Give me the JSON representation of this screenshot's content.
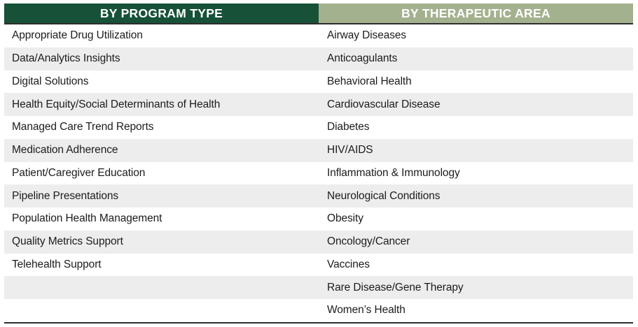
{
  "table": {
    "columns": [
      {
        "header": "BY PROGRAM TYPE",
        "items": [
          "Appropriate Drug Utilization",
          "Data/Analytics Insights",
          "Digital Solutions",
          "Health Equity/Social Determinants of Health",
          "Managed Care Trend Reports",
          "Medication Adherence",
          "Patient/Caregiver Education",
          "Pipeline Presentations",
          "Population Health Management",
          "Quality Metrics Support",
          "Telehealth Support"
        ]
      },
      {
        "header": "BY THERAPEUTIC AREA",
        "items": [
          "Airway Diseases",
          "Anticoagulants",
          "Behavioral Health",
          "Cardiovascular Disease",
          "Diabetes",
          "HIV/AIDS",
          "Inflammation & Immunology",
          "Neurological Conditions",
          "Obesity",
          "Oncology/Cancer",
          "Vaccines",
          "Rare Disease/Gene Therapy",
          "Women’s Health"
        ]
      }
    ]
  },
  "colors": {
    "header_program_bg": "#165138",
    "header_area_bg": "#a4b18f",
    "row_stripe": "#ededed",
    "rule_dark": "#2e2e2e",
    "text": "#1c1c1c",
    "header_text": "#ffffff"
  }
}
